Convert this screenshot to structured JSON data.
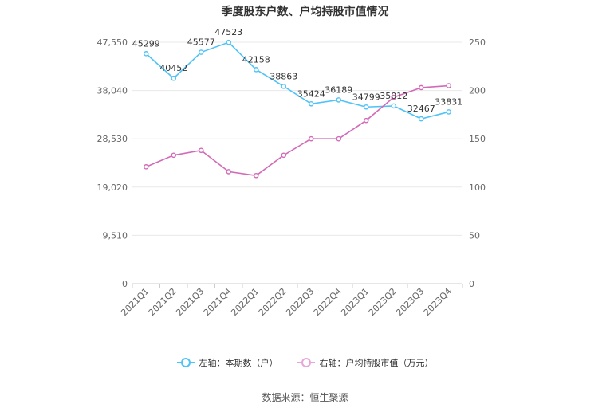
{
  "chart_data": {
    "type": "line",
    "title": "季度股东户数、户均持股市值情况",
    "categories": [
      "2021Q1",
      "2021Q2",
      "2021Q3",
      "2021Q4",
      "2022Q1",
      "2022Q2",
      "2022Q3",
      "2022Q4",
      "2023Q1",
      "2023Q2",
      "2023Q3",
      "2023Q4"
    ],
    "left_axis": {
      "ticks": [
        "0",
        "9,510",
        "19,020",
        "28,530",
        "38,040",
        "47,550"
      ],
      "range": [
        0,
        47550
      ]
    },
    "right_axis": {
      "ticks": [
        "0",
        "50",
        "100",
        "150",
        "200",
        "250"
      ],
      "range": [
        0,
        250
      ]
    },
    "series": [
      {
        "name": "左轴：本期数（户）",
        "axis": "left",
        "color": "#4fc3f7",
        "values": [
          45299,
          40452,
          45577,
          47523,
          42158,
          38863,
          35424,
          36189,
          34799,
          35012,
          32467,
          33831
        ],
        "labels": [
          "45299",
          "40452",
          "45577",
          "47523",
          "42158",
          "38863",
          "35424",
          "36189",
          "34799",
          "35012",
          "32467",
          "33831"
        ]
      },
      {
        "name": "右轴：户均持股市值（万元）",
        "axis": "right",
        "color": "#d36ab8",
        "values": [
          121,
          133,
          138,
          116,
          112,
          133,
          150,
          150,
          169,
          193,
          203,
          205
        ]
      }
    ],
    "grid": true,
    "legend_position": "bottom"
  },
  "source": "数据来源：恒生聚源"
}
